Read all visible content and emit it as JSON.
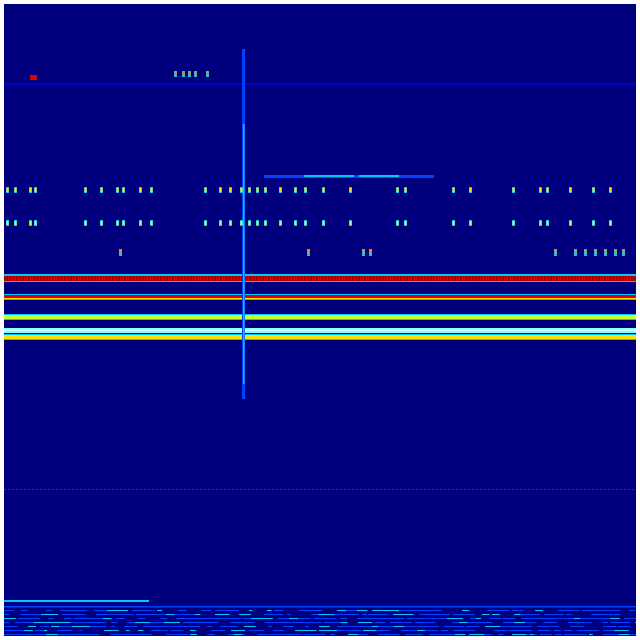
{
  "colormap": "jet",
  "colors": {
    "background": "#00007f",
    "dark_blue": "#0000c8",
    "blue": "#0040ff",
    "cyan": "#00c8ff",
    "light_cyan": "#80ffff",
    "green_yellow": "#c8ff30",
    "yellow": "#ffe000",
    "orange": "#ff8000",
    "red": "#e00000",
    "dark_red": "#900000"
  }
}
